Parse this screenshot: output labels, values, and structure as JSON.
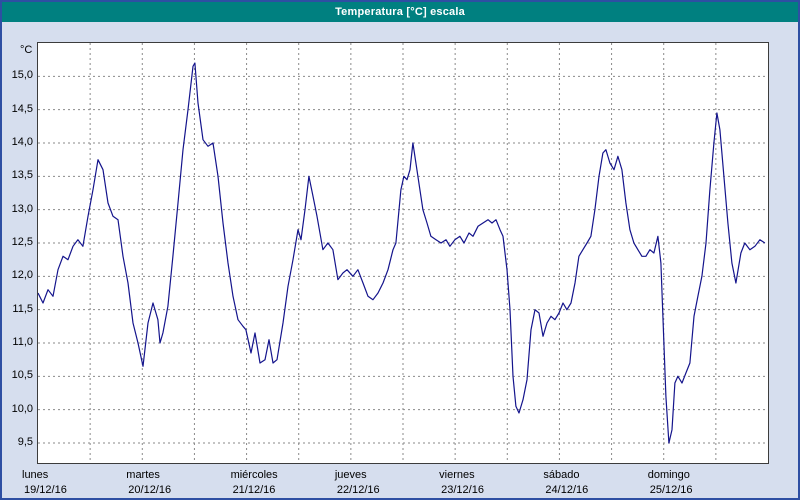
{
  "window": {
    "title": "Temperatura [°C] escala",
    "title_bar_color": "#008080",
    "border_color": "#2e4fa3",
    "background_color": "#d6deee"
  },
  "chart_data": {
    "type": "line",
    "title": "Temperatura [°C] escala",
    "xlabel": "",
    "ylabel": "°C",
    "ylim": [
      9.2,
      15.5
    ],
    "y_ticks": [
      9.5,
      10.0,
      10.5,
      11.0,
      11.5,
      12.0,
      12.5,
      13.0,
      13.5,
      14.0,
      14.5,
      15.0
    ],
    "x_days_total": 7,
    "x_grid_step_days": 0.5,
    "grid": true,
    "legend": "none",
    "line_color": "#14148c",
    "x_labels": [
      {
        "day": "lunes",
        "date": "19/12/16"
      },
      {
        "day": "martes",
        "date": "20/12/16"
      },
      {
        "day": "miércoles",
        "date": "21/12/16"
      },
      {
        "day": "jueves",
        "date": "22/12/16"
      },
      {
        "day": "viernes",
        "date": "23/12/16"
      },
      {
        "day": "sábado",
        "date": "24/12/16"
      },
      {
        "day": "domingo",
        "date": "25/12/16"
      }
    ],
    "series": [
      {
        "name": "Temperatura [°C]",
        "points": [
          [
            0,
            11.75
          ],
          [
            0.048,
            11.6
          ],
          [
            0.096,
            11.8
          ],
          [
            0.144,
            11.7
          ],
          [
            0.192,
            12.1
          ],
          [
            0.24,
            12.3
          ],
          [
            0.288,
            12.25
          ],
          [
            0.336,
            12.45
          ],
          [
            0.383,
            12.55
          ],
          [
            0.431,
            12.45
          ],
          [
            0.479,
            12.9
          ],
          [
            0.527,
            13.3
          ],
          [
            0.575,
            13.75
          ],
          [
            0.623,
            13.6
          ],
          [
            0.671,
            13.1
          ],
          [
            0.719,
            12.9
          ],
          [
            0.767,
            12.85
          ],
          [
            0.815,
            12.3
          ],
          [
            0.863,
            11.9
          ],
          [
            0.911,
            11.3
          ],
          [
            0.959,
            11.0
          ],
          [
            1.007,
            10.65
          ],
          [
            1.055,
            11.3
          ],
          [
            1.103,
            11.6
          ],
          [
            1.15,
            11.35
          ],
          [
            1.17,
            11.0
          ],
          [
            1.198,
            11.15
          ],
          [
            1.246,
            11.55
          ],
          [
            1.294,
            12.3
          ],
          [
            1.342,
            13.1
          ],
          [
            1.39,
            13.9
          ],
          [
            1.438,
            14.5
          ],
          [
            1.486,
            15.15
          ],
          [
            1.505,
            15.2
          ],
          [
            1.534,
            14.6
          ],
          [
            1.582,
            14.05
          ],
          [
            1.63,
            13.95
          ],
          [
            1.678,
            14.0
          ],
          [
            1.726,
            13.5
          ],
          [
            1.774,
            12.8
          ],
          [
            1.822,
            12.2
          ],
          [
            1.87,
            11.7
          ],
          [
            1.918,
            11.35
          ],
          [
            1.966,
            11.25
          ],
          [
            1.994,
            11.2
          ],
          [
            2.042,
            10.85
          ],
          [
            2.081,
            11.15
          ],
          [
            2.129,
            10.7
          ],
          [
            2.177,
            10.75
          ],
          [
            2.215,
            11.05
          ],
          [
            2.253,
            10.7
          ],
          [
            2.292,
            10.75
          ],
          [
            2.349,
            11.3
          ],
          [
            2.397,
            11.85
          ],
          [
            2.445,
            12.25
          ],
          [
            2.493,
            12.7
          ],
          [
            2.522,
            12.55
          ],
          [
            2.56,
            13.0
          ],
          [
            2.598,
            13.5
          ],
          [
            2.637,
            13.2
          ],
          [
            2.675,
            12.9
          ],
          [
            2.732,
            12.4
          ],
          [
            2.78,
            12.5
          ],
          [
            2.828,
            12.4
          ],
          [
            2.876,
            11.95
          ],
          [
            2.924,
            12.05
          ],
          [
            2.963,
            12.1
          ],
          [
            3.02,
            12.0
          ],
          [
            3.068,
            12.1
          ],
          [
            3.116,
            11.9
          ],
          [
            3.164,
            11.7
          ],
          [
            3.212,
            11.65
          ],
          [
            3.26,
            11.75
          ],
          [
            3.308,
            11.9
          ],
          [
            3.356,
            12.1
          ],
          [
            3.404,
            12.4
          ],
          [
            3.432,
            12.5
          ],
          [
            3.48,
            13.3
          ],
          [
            3.509,
            13.5
          ],
          [
            3.538,
            13.45
          ],
          [
            3.567,
            13.6
          ],
          [
            3.595,
            14.0
          ],
          [
            3.643,
            13.5
          ],
          [
            3.691,
            13.0
          ],
          [
            3.73,
            12.8
          ],
          [
            3.768,
            12.6
          ],
          [
            3.816,
            12.55
          ],
          [
            3.864,
            12.5
          ],
          [
            3.912,
            12.55
          ],
          [
            3.95,
            12.45
          ],
          [
            3.998,
            12.55
          ],
          [
            4.046,
            12.6
          ],
          [
            4.085,
            12.5
          ],
          [
            4.133,
            12.65
          ],
          [
            4.171,
            12.6
          ],
          [
            4.219,
            12.75
          ],
          [
            4.267,
            12.8
          ],
          [
            4.315,
            12.85
          ],
          [
            4.353,
            12.8
          ],
          [
            4.392,
            12.85
          ],
          [
            4.43,
            12.7
          ],
          [
            4.459,
            12.6
          ],
          [
            4.497,
            12.1
          ],
          [
            4.526,
            11.5
          ],
          [
            4.555,
            10.5
          ],
          [
            4.583,
            10.05
          ],
          [
            4.612,
            9.95
          ],
          [
            4.651,
            10.15
          ],
          [
            4.689,
            10.45
          ],
          [
            4.727,
            11.2
          ],
          [
            4.766,
            11.5
          ],
          [
            4.804,
            11.45
          ],
          [
            4.842,
            11.1
          ],
          [
            4.881,
            11.3
          ],
          [
            4.919,
            11.4
          ],
          [
            4.957,
            11.35
          ],
          [
            4.996,
            11.45
          ],
          [
            5.034,
            11.6
          ],
          [
            5.072,
            11.5
          ],
          [
            5.111,
            11.6
          ],
          [
            5.149,
            11.9
          ],
          [
            5.187,
            12.3
          ],
          [
            5.225,
            12.4
          ],
          [
            5.264,
            12.5
          ],
          [
            5.302,
            12.6
          ],
          [
            5.34,
            13.0
          ],
          [
            5.379,
            13.5
          ],
          [
            5.417,
            13.85
          ],
          [
            5.446,
            13.9
          ],
          [
            5.484,
            13.7
          ],
          [
            5.523,
            13.6
          ],
          [
            5.561,
            13.8
          ],
          [
            5.599,
            13.6
          ],
          [
            5.637,
            13.1
          ],
          [
            5.676,
            12.7
          ],
          [
            5.714,
            12.5
          ],
          [
            5.752,
            12.4
          ],
          [
            5.791,
            12.3
          ],
          [
            5.829,
            12.3
          ],
          [
            5.868,
            12.4
          ],
          [
            5.906,
            12.35
          ],
          [
            5.944,
            12.6
          ],
          [
            5.973,
            12.2
          ],
          [
            6.002,
            11.0
          ],
          [
            6.021,
            10.2
          ],
          [
            6.05,
            9.5
          ],
          [
            6.079,
            9.7
          ],
          [
            6.107,
            10.4
          ],
          [
            6.136,
            10.5
          ],
          [
            6.175,
            10.4
          ],
          [
            6.213,
            10.55
          ],
          [
            6.251,
            10.7
          ],
          [
            6.29,
            11.4
          ],
          [
            6.328,
            11.7
          ],
          [
            6.366,
            12.0
          ],
          [
            6.405,
            12.5
          ],
          [
            6.443,
            13.3
          ],
          [
            6.481,
            14.0
          ],
          [
            6.51,
            14.45
          ],
          [
            6.539,
            14.2
          ],
          [
            6.577,
            13.5
          ],
          [
            6.615,
            12.8
          ],
          [
            6.654,
            12.2
          ],
          [
            6.692,
            11.9
          ],
          [
            6.74,
            12.35
          ],
          [
            6.778,
            12.5
          ],
          [
            6.826,
            12.4
          ],
          [
            6.874,
            12.45
          ],
          [
            6.922,
            12.55
          ],
          [
            6.97,
            12.5
          ]
        ]
      }
    ]
  }
}
